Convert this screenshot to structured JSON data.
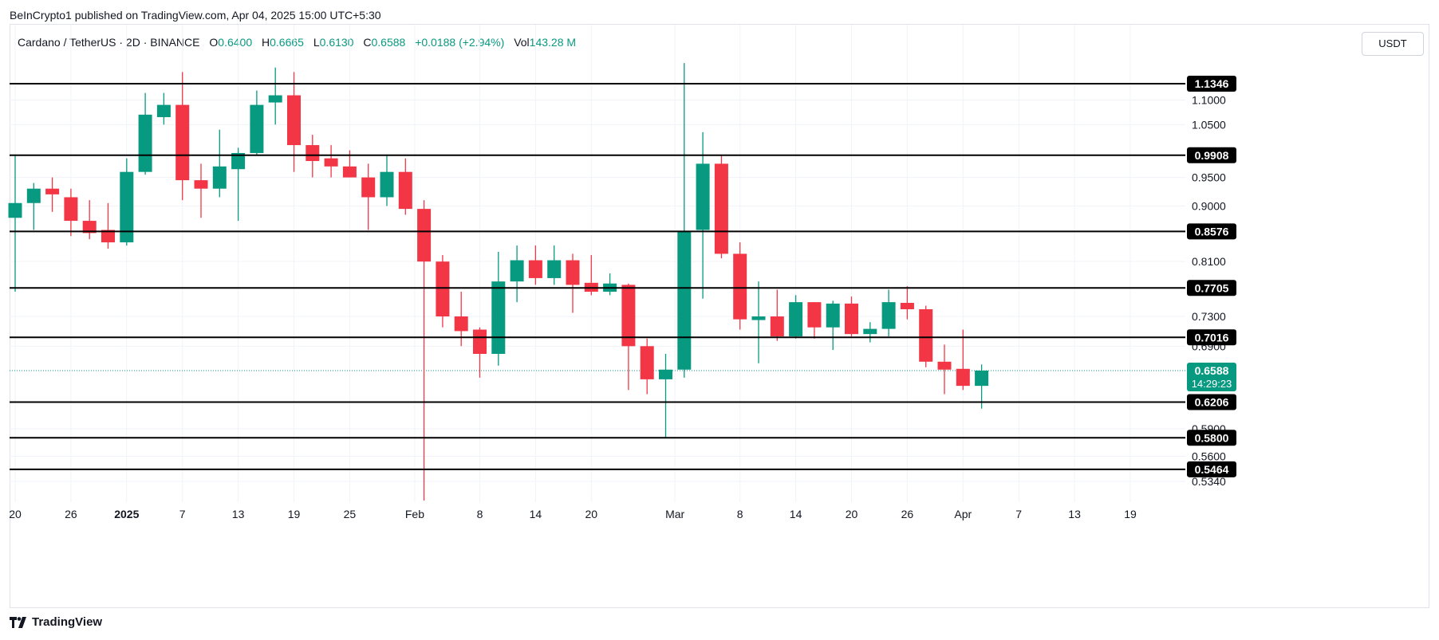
{
  "publisher_line": "BeInCrypto1 published on TradingView.com, Apr 04, 2025 15:00 UTC+5:30",
  "header": {
    "symbol": "Cardano / TetherUS · 2D · BINANCE",
    "open_label": "O",
    "open": "0.6400",
    "high_label": "H",
    "high": "0.6665",
    "low_label": "L",
    "low": "0.6130",
    "close_label": "C",
    "close": "0.6588",
    "change": "+0.0188 (+2.94%)",
    "vol_label": "Vol",
    "vol": "143.28 M"
  },
  "currency_button": "USDT",
  "logo_text": "TradingView",
  "colors": {
    "up": "#089981",
    "down": "#f23645",
    "level_line": "#000000",
    "grid": "#f0f3fa"
  },
  "chart_data": {
    "type": "candlestick",
    "y_axis_scale": "log",
    "ylim": [
      0.515,
      1.22
    ],
    "y_ticks": [
      "1.1000",
      "1.0500",
      "0.9500",
      "0.9000",
      "0.8100",
      "0.7300",
      "0.6900",
      "0.5900",
      "0.5600",
      "0.5340"
    ],
    "x_ticks": [
      "20",
      "26",
      "2025",
      "7",
      "13",
      "19",
      "25",
      "Feb",
      "8",
      "14",
      "20",
      "Mar",
      "8",
      "14",
      "20",
      "26",
      "Apr",
      "7",
      "13",
      "19"
    ],
    "horizontal_levels": [
      "1.1346",
      "0.9908",
      "0.8576",
      "0.7705",
      "0.7016",
      "0.6206",
      "0.5800",
      "0.5464"
    ],
    "last_price": {
      "value": "0.6588",
      "countdown": "14:29:23"
    },
    "candles": [
      {
        "date": "2024-12-20",
        "o": 0.88,
        "h": 0.99,
        "l": 0.765,
        "c": 0.905
      },
      {
        "date": "2024-12-22",
        "o": 0.905,
        "h": 0.94,
        "l": 0.86,
        "c": 0.93
      },
      {
        "date": "2024-12-24",
        "o": 0.93,
        "h": 0.95,
        "l": 0.89,
        "c": 0.92
      },
      {
        "date": "2024-12-26",
        "o": 0.915,
        "h": 0.93,
        "l": 0.85,
        "c": 0.875
      },
      {
        "date": "2024-12-28",
        "o": 0.875,
        "h": 0.91,
        "l": 0.845,
        "c": 0.855
      },
      {
        "date": "2024-12-30",
        "o": 0.86,
        "h": 0.905,
        "l": 0.83,
        "c": 0.84
      },
      {
        "date": "2025-01-01",
        "o": 0.84,
        "h": 0.985,
        "l": 0.835,
        "c": 0.96
      },
      {
        "date": "2025-01-03",
        "o": 0.96,
        "h": 1.115,
        "l": 0.955,
        "c": 1.07
      },
      {
        "date": "2025-01-05",
        "o": 1.065,
        "h": 1.115,
        "l": 1.05,
        "c": 1.09
      },
      {
        "date": "2025-01-07",
        "o": 1.09,
        "h": 1.16,
        "l": 0.91,
        "c": 0.945
      },
      {
        "date": "2025-01-09",
        "o": 0.945,
        "h": 0.975,
        "l": 0.88,
        "c": 0.93
      },
      {
        "date": "2025-01-11",
        "o": 0.93,
        "h": 1.04,
        "l": 0.915,
        "c": 0.97
      },
      {
        "date": "2025-01-13",
        "o": 0.965,
        "h": 1.005,
        "l": 0.875,
        "c": 0.995
      },
      {
        "date": "2025-01-15",
        "o": 0.995,
        "h": 1.12,
        "l": 0.99,
        "c": 1.09
      },
      {
        "date": "2025-01-17",
        "o": 1.095,
        "h": 1.17,
        "l": 1.05,
        "c": 1.11
      },
      {
        "date": "2025-01-19",
        "o": 1.11,
        "h": 1.16,
        "l": 0.96,
        "c": 1.01
      },
      {
        "date": "2025-01-21",
        "o": 1.01,
        "h": 1.03,
        "l": 0.95,
        "c": 0.98
      },
      {
        "date": "2025-01-23",
        "o": 0.985,
        "h": 1.01,
        "l": 0.95,
        "c": 0.97
      },
      {
        "date": "2025-01-25",
        "o": 0.97,
        "h": 1.0,
        "l": 0.95,
        "c": 0.95
      },
      {
        "date": "2025-01-27",
        "o": 0.95,
        "h": 0.975,
        "l": 0.86,
        "c": 0.915
      },
      {
        "date": "2025-01-29",
        "o": 0.915,
        "h": 0.99,
        "l": 0.9,
        "c": 0.96
      },
      {
        "date": "2025-01-31",
        "o": 0.96,
        "h": 0.985,
        "l": 0.885,
        "c": 0.895
      },
      {
        "date": "2025-02-02",
        "o": 0.895,
        "h": 0.91,
        "l": 0.515,
        "c": 0.81
      },
      {
        "date": "2025-02-04",
        "o": 0.81,
        "h": 0.82,
        "l": 0.715,
        "c": 0.73
      },
      {
        "date": "2025-02-06",
        "o": 0.73,
        "h": 0.765,
        "l": 0.69,
        "c": 0.71
      },
      {
        "date": "2025-02-08",
        "o": 0.712,
        "h": 0.715,
        "l": 0.65,
        "c": 0.68
      },
      {
        "date": "2025-02-10",
        "o": 0.68,
        "h": 0.825,
        "l": 0.665,
        "c": 0.78
      },
      {
        "date": "2025-02-12",
        "o": 0.78,
        "h": 0.835,
        "l": 0.75,
        "c": 0.812
      },
      {
        "date": "2025-02-14",
        "o": 0.812,
        "h": 0.835,
        "l": 0.775,
        "c": 0.785
      },
      {
        "date": "2025-02-16",
        "o": 0.785,
        "h": 0.835,
        "l": 0.775,
        "c": 0.812
      },
      {
        "date": "2025-02-18",
        "o": 0.812,
        "h": 0.822,
        "l": 0.735,
        "c": 0.775
      },
      {
        "date": "2025-02-20",
        "o": 0.778,
        "h": 0.82,
        "l": 0.76,
        "c": 0.765
      },
      {
        "date": "2025-02-22",
        "o": 0.765,
        "h": 0.792,
        "l": 0.76,
        "c": 0.777
      },
      {
        "date": "2025-02-24",
        "o": 0.775,
        "h": 0.777,
        "l": 0.635,
        "c": 0.69
      },
      {
        "date": "2025-02-26",
        "o": 0.69,
        "h": 0.7,
        "l": 0.63,
        "c": 0.648
      },
      {
        "date": "2025-02-28",
        "o": 0.648,
        "h": 0.68,
        "l": 0.58,
        "c": 0.66
      },
      {
        "date": "2025-03-02",
        "o": 0.66,
        "h": 1.18,
        "l": 0.65,
        "c": 0.857
      },
      {
        "date": "2025-03-04",
        "o": 0.86,
        "h": 1.035,
        "l": 0.755,
        "c": 0.975
      },
      {
        "date": "2025-03-06",
        "o": 0.975,
        "h": 0.99,
        "l": 0.815,
        "c": 0.822
      },
      {
        "date": "2025-03-08",
        "o": 0.822,
        "h": 0.84,
        "l": 0.712,
        "c": 0.726
      },
      {
        "date": "2025-03-10",
        "o": 0.725,
        "h": 0.78,
        "l": 0.668,
        "c": 0.73
      },
      {
        "date": "2025-03-12",
        "o": 0.73,
        "h": 0.768,
        "l": 0.697,
        "c": 0.703
      },
      {
        "date": "2025-03-14",
        "o": 0.703,
        "h": 0.76,
        "l": 0.7,
        "c": 0.75
      },
      {
        "date": "2025-03-16",
        "o": 0.75,
        "h": 0.75,
        "l": 0.7,
        "c": 0.715
      },
      {
        "date": "2025-03-18",
        "o": 0.715,
        "h": 0.752,
        "l": 0.685,
        "c": 0.748
      },
      {
        "date": "2025-03-20",
        "o": 0.748,
        "h": 0.758,
        "l": 0.703,
        "c": 0.706
      },
      {
        "date": "2025-03-22",
        "o": 0.706,
        "h": 0.722,
        "l": 0.695,
        "c": 0.713
      },
      {
        "date": "2025-03-24",
        "o": 0.713,
        "h": 0.768,
        "l": 0.703,
        "c": 0.75
      },
      {
        "date": "2025-03-26",
        "o": 0.749,
        "h": 0.773,
        "l": 0.726,
        "c": 0.74
      },
      {
        "date": "2025-03-28",
        "o": 0.74,
        "h": 0.745,
        "l": 0.663,
        "c": 0.67
      },
      {
        "date": "2025-03-30",
        "o": 0.67,
        "h": 0.692,
        "l": 0.63,
        "c": 0.66
      },
      {
        "date": "2025-04-01",
        "o": 0.661,
        "h": 0.712,
        "l": 0.635,
        "c": 0.64
      },
      {
        "date": "2025-04-03",
        "o": 0.64,
        "h": 0.6665,
        "l": 0.613,
        "c": 0.6588
      }
    ]
  }
}
